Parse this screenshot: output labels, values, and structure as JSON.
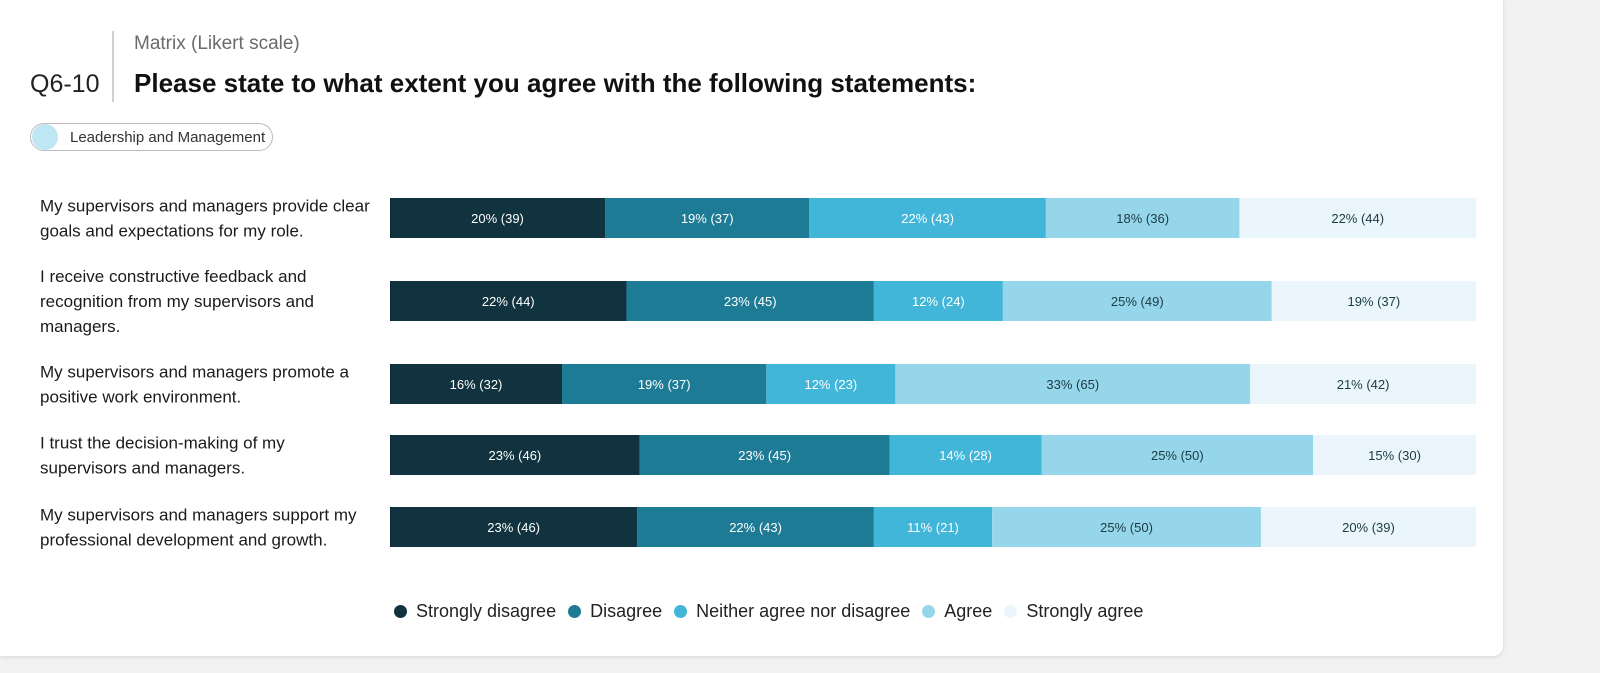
{
  "header": {
    "question_number": "Q6-10",
    "question_type": "Matrix (Likert scale)",
    "question_title": "Please state to what extent you agree with the following statements:"
  },
  "tag": {
    "label": "Leadership and Management"
  },
  "chart_data": {
    "type": "bar",
    "stacked": true,
    "orientation": "horizontal",
    "normalized_percent": true,
    "categories": [
      "My supervisors and managers provide clear goals and expectations for my role.",
      "I receive constructive feedback and recognition from my supervisors and managers.",
      "My supervisors and managers promote a positive work environment.",
      "I trust the decision-making of my supervisors and managers.",
      "My supervisors and managers support my professional development and growth."
    ],
    "category_lines": [
      [
        "My supervisors and managers provide clear",
        "goals and expectations for my role."
      ],
      [
        "I receive constructive feedback and",
        "recognition from my supervisors and",
        "managers."
      ],
      [
        "My supervisors and managers promote a",
        "positive work environment."
      ],
      [
        "I trust the decision-making of my",
        "supervisors and managers."
      ],
      [
        "My supervisors and managers support my",
        "professional development and growth."
      ]
    ],
    "series": [
      {
        "name": "Strongly disagree",
        "color": "#10333f",
        "text_color": "#ffffff",
        "values": [
          20,
          22,
          16,
          23,
          23
        ],
        "counts": [
          39,
          44,
          32,
          46,
          46
        ],
        "labels": [
          "20% (39)",
          "22% (44)",
          "16% (32)",
          "23% (46)",
          "23% (46)"
        ]
      },
      {
        "name": "Disagree",
        "color": "#1e7b96",
        "text_color": "#ffffff",
        "values": [
          19,
          23,
          19,
          23,
          22
        ],
        "counts": [
          37,
          45,
          37,
          45,
          43
        ],
        "labels": [
          "19% (37)",
          "23% (45)",
          "19% (37)",
          "23% (45)",
          "22% (43)"
        ]
      },
      {
        "name": "Neither agree nor disagree",
        "color": "#41b6d8",
        "text_color": "#ffffff",
        "values": [
          22,
          12,
          12,
          14,
          11
        ],
        "counts": [
          43,
          24,
          23,
          28,
          21
        ],
        "labels": [
          "22% (43)",
          "12% (24)",
          "12% (23)",
          "14% (28)",
          "11% (21)"
        ]
      },
      {
        "name": "Agree",
        "color": "#96d6ea",
        "text_color": "#1c3a44",
        "values": [
          18,
          25,
          33,
          25,
          25
        ],
        "counts": [
          36,
          49,
          65,
          50,
          50
        ],
        "labels": [
          "18% (36)",
          "25% (49)",
          "33% (65)",
          "25% (50)",
          "25% (50)"
        ]
      },
      {
        "name": "Strongly agree",
        "color": "#eaf6fb",
        "text_color": "#1c3a44",
        "values": [
          22,
          19,
          21,
          15,
          20
        ],
        "counts": [
          44,
          37,
          42,
          30,
          39
        ],
        "labels": [
          "22% (44)",
          "19% (37)",
          "21% (42)",
          "15% (30)",
          "20% (39)"
        ]
      }
    ],
    "legend_position": "bottom",
    "grid": false
  }
}
